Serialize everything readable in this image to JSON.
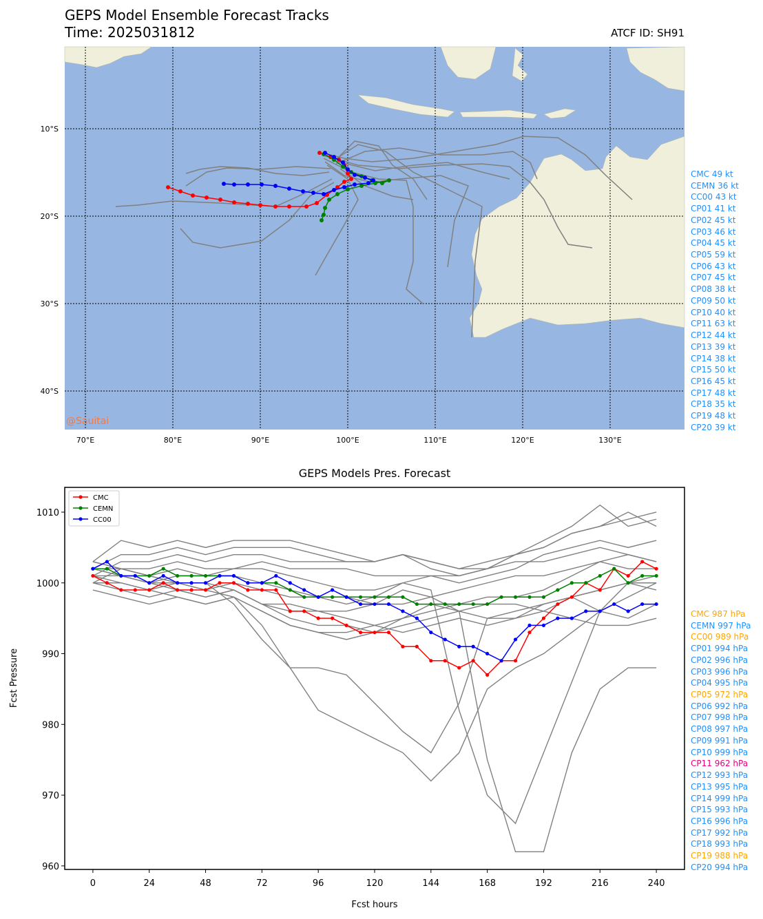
{
  "header": {
    "title": "GEPS Model Ensemble Forecast Tracks",
    "time": "Time: 2025031812",
    "atcf": "ATCF ID: SH91"
  },
  "map": {
    "watermark": "@Sauitai",
    "lat_labels": [
      "10°S",
      "20°S",
      "30°S",
      "40°S"
    ],
    "lon_labels": [
      "70°E",
      "80°E",
      "90°E",
      "100°E",
      "110°E",
      "120°E",
      "130°E"
    ],
    "colors": {
      "ocean": "#97b6e1",
      "land": "#efefdb",
      "member": "#808080",
      "cmc": "#ff0000",
      "cemn": "#008000",
      "cc00": "#0000ff"
    }
  },
  "intensity_list": [
    {
      "label": "CMC 49 kt",
      "color": "#1e90ff"
    },
    {
      "label": "CEMN 36 kt",
      "color": "#1e90ff"
    },
    {
      "label": "CC00 43 kt",
      "color": "#1e90ff"
    },
    {
      "label": "CP01 41 kt",
      "color": "#1e90ff"
    },
    {
      "label": "CP02 45 kt",
      "color": "#1e90ff"
    },
    {
      "label": "CP03 46 kt",
      "color": "#1e90ff"
    },
    {
      "label": "CP04 45 kt",
      "color": "#1e90ff"
    },
    {
      "label": "CP05 59 kt",
      "color": "#1e90ff"
    },
    {
      "label": "CP06 43 kt",
      "color": "#1e90ff"
    },
    {
      "label": "CP07 45 kt",
      "color": "#1e90ff"
    },
    {
      "label": "CP08 38 kt",
      "color": "#1e90ff"
    },
    {
      "label": "CP09 50 kt",
      "color": "#1e90ff"
    },
    {
      "label": "CP10 40 kt",
      "color": "#1e90ff"
    },
    {
      "label": "CP11 63 kt",
      "color": "#1e90ff"
    },
    {
      "label": "CP12 44 kt",
      "color": "#1e90ff"
    },
    {
      "label": "CP13 39 kt",
      "color": "#1e90ff"
    },
    {
      "label": "CP14 38 kt",
      "color": "#1e90ff"
    },
    {
      "label": "CP15 50 kt",
      "color": "#1e90ff"
    },
    {
      "label": "CP16 45 kt",
      "color": "#1e90ff"
    },
    {
      "label": "CP17 48 kt",
      "color": "#1e90ff"
    },
    {
      "label": "CP18 35 kt",
      "color": "#1e90ff"
    },
    {
      "label": "CP19 48 kt",
      "color": "#1e90ff"
    },
    {
      "label": "CP20 39 kt",
      "color": "#1e90ff"
    }
  ],
  "pressure_list": [
    {
      "label": "CMC 987 hPa",
      "color": "#ffa500"
    },
    {
      "label": "CEMN 997 hPa",
      "color": "#1e90ff"
    },
    {
      "label": "CC00 989 hPa",
      "color": "#ffa500"
    },
    {
      "label": "CP01 994 hPa",
      "color": "#1e90ff"
    },
    {
      "label": "CP02 996 hPa",
      "color": "#1e90ff"
    },
    {
      "label": "CP03 996 hPa",
      "color": "#1e90ff"
    },
    {
      "label": "CP04 995 hPa",
      "color": "#1e90ff"
    },
    {
      "label": "CP05 972 hPa",
      "color": "#ffa500"
    },
    {
      "label": "CP06 992 hPa",
      "color": "#1e90ff"
    },
    {
      "label": "CP07 998 hPa",
      "color": "#1e90ff"
    },
    {
      "label": "CP08 997 hPa",
      "color": "#1e90ff"
    },
    {
      "label": "CP09 991 hPa",
      "color": "#1e90ff"
    },
    {
      "label": "CP10 999 hPa",
      "color": "#1e90ff"
    },
    {
      "label": "CP11 962 hPa",
      "color": "#e6007e"
    },
    {
      "label": "CP12 993 hPa",
      "color": "#1e90ff"
    },
    {
      "label": "CP13 995 hPa",
      "color": "#1e90ff"
    },
    {
      "label": "CP14 999 hPa",
      "color": "#1e90ff"
    },
    {
      "label": "CP15 993 hPa",
      "color": "#1e90ff"
    },
    {
      "label": "CP16 996 hPa",
      "color": "#1e90ff"
    },
    {
      "label": "CP17 992 hPa",
      "color": "#1e90ff"
    },
    {
      "label": "CP18 993 hPa",
      "color": "#1e90ff"
    },
    {
      "label": "CP19 988 hPa",
      "color": "#ffa500"
    },
    {
      "label": "CP20 994 hPa",
      "color": "#1e90ff"
    }
  ],
  "chart_data": {
    "type": "line",
    "title": "GEPS Models Pres. Forecast",
    "xlabel": "Fcst hours",
    "ylabel": "Fcst Pressure",
    "xlim": [
      -12,
      252
    ],
    "ylim": [
      959.5,
      1013.5
    ],
    "xticks": [
      0,
      24,
      48,
      72,
      96,
      120,
      144,
      168,
      192,
      216,
      240
    ],
    "yticks": [
      960,
      970,
      980,
      990,
      1000,
      1010
    ],
    "legend": "top-left",
    "highlight_series": [
      {
        "name": "CMC",
        "color": "#ff0000",
        "x": [
          0,
          6,
          12,
          18,
          24,
          30,
          36,
          42,
          48,
          54,
          60,
          66,
          72,
          78,
          84,
          90,
          96,
          102,
          108,
          114,
          120,
          126,
          132,
          138,
          144,
          150,
          156,
          162,
          168,
          174,
          180,
          186,
          192,
          198,
          204,
          210,
          216,
          222,
          228,
          234,
          240
        ],
        "y": [
          1001,
          1000,
          999,
          999,
          999,
          1000,
          999,
          999,
          999,
          1000,
          1000,
          999,
          999,
          999,
          996,
          996,
          995,
          995,
          994,
          993,
          993,
          993,
          991,
          991,
          989,
          989,
          988,
          989,
          987,
          989,
          989,
          993,
          995,
          997,
          998,
          1000,
          999,
          1002,
          1001,
          1003,
          1002
        ]
      },
      {
        "name": "CEMN",
        "color": "#008000",
        "x": [
          0,
          6,
          12,
          18,
          24,
          30,
          36,
          42,
          48,
          54,
          60,
          66,
          72,
          78,
          84,
          90,
          96,
          102,
          108,
          114,
          120,
          126,
          132,
          138,
          144,
          150,
          156,
          162,
          168,
          174,
          180,
          186,
          192,
          198,
          204,
          210,
          216,
          222,
          228,
          234,
          240
        ],
        "y": [
          1002,
          1002,
          1001,
          1001,
          1001,
          1002,
          1001,
          1001,
          1001,
          1001,
          1001,
          1000,
          1000,
          1000,
          999,
          998,
          998,
          998,
          998,
          998,
          998,
          998,
          998,
          997,
          997,
          997,
          997,
          997,
          997,
          998,
          998,
          998,
          998,
          999,
          1000,
          1000,
          1001,
          1002,
          1000,
          1001,
          1001
        ]
      },
      {
        "name": "CC00",
        "color": "#0000ff",
        "x": [
          0,
          6,
          12,
          18,
          24,
          30,
          36,
          42,
          48,
          54,
          60,
          66,
          72,
          78,
          84,
          90,
          96,
          102,
          108,
          114,
          120,
          126,
          132,
          138,
          144,
          150,
          156,
          162,
          168,
          174,
          180,
          186,
          192,
          198,
          204,
          210,
          216,
          222,
          228,
          234,
          240
        ],
        "y": [
          1002,
          1003,
          1001,
          1001,
          1000,
          1001,
          1000,
          1000,
          1000,
          1001,
          1001,
          1000,
          1000,
          1001,
          1000,
          999,
          998,
          999,
          998,
          997,
          997,
          997,
          996,
          995,
          993,
          992,
          991,
          991,
          990,
          989,
          992,
          994,
          994,
          995,
          995,
          996,
          996,
          997,
          996,
          997,
          997
        ]
      }
    ],
    "member_series": [
      {
        "name": "member-a",
        "x": [
          0,
          12,
          24,
          36,
          48,
          60,
          72,
          84,
          96,
          108,
          120,
          132,
          144,
          156,
          168,
          180,
          192,
          204,
          216,
          228,
          240
        ],
        "y": [
          1003,
          1006,
          1005,
          1006,
          1005,
          1006,
          1006,
          1006,
          1005,
          1004,
          1003,
          1004,
          1003,
          1002,
          1003,
          1004,
          1005,
          1007,
          1008,
          1009,
          1010
        ]
      },
      {
        "name": "member-b",
        "x": [
          0,
          12,
          24,
          36,
          48,
          60,
          72,
          84,
          96,
          108,
          120,
          132,
          144,
          156,
          168,
          180,
          192,
          204,
          216,
          228,
          240
        ],
        "y": [
          1002,
          1004,
          1004,
          1005,
          1004,
          1005,
          1005,
          1005,
          1004,
          1003,
          1003,
          1004,
          1003,
          1002,
          1002,
          1004,
          1006,
          1008,
          1011,
          1008,
          1009
        ]
      },
      {
        "name": "member-c",
        "x": [
          0,
          12,
          24,
          36,
          48,
          60,
          72,
          84,
          96,
          108,
          120,
          132,
          144,
          156,
          168,
          180,
          192,
          204,
          216,
          228,
          240
        ],
        "y": [
          1001,
          1003,
          1003,
          1004,
          1003,
          1004,
          1004,
          1003,
          1003,
          1003,
          1003,
          1004,
          1002,
          1001,
          1002,
          1004,
          1005,
          1007,
          1008,
          1010,
          1008
        ]
      },
      {
        "name": "member-d",
        "x": [
          0,
          12,
          24,
          36,
          48,
          60,
          72,
          84,
          96,
          108,
          120,
          132,
          144,
          156,
          168,
          180,
          192,
          204,
          216,
          228,
          240
        ],
        "y": [
          1000,
          1002,
          1002,
          1003,
          1002,
          1002,
          1003,
          1002,
          1002,
          1002,
          1001,
          1001,
          1001,
          1000,
          1001,
          1002,
          1004,
          1005,
          1006,
          1005,
          1006
        ]
      },
      {
        "name": "member-e",
        "x": [
          0,
          12,
          24,
          36,
          48,
          60,
          72,
          84,
          96,
          108,
          120,
          132,
          144,
          156,
          168,
          180,
          192,
          204,
          216,
          228,
          240
        ],
        "y": [
          999,
          998,
          997,
          998,
          997,
          998,
          996,
          994,
          993,
          993,
          994,
          995,
          996,
          997,
          998,
          998,
          999,
          1001,
          1003,
          1004,
          1003
        ]
      },
      {
        "name": "member-f",
        "x": [
          0,
          12,
          24,
          36,
          48,
          60,
          72,
          84,
          96,
          108,
          120,
          132,
          144,
          156,
          168,
          180,
          192,
          204,
          216,
          228,
          240
        ],
        "y": [
          1000,
          999,
          998,
          999,
          998,
          999,
          997,
          995,
          994,
          994,
          993,
          994,
          995,
          996,
          997,
          997,
          996,
          998,
          999,
          1000,
          999
        ]
      },
      {
        "name": "member-g",
        "x": [
          0,
          12,
          24,
          36,
          48,
          60,
          72,
          84,
          96,
          108,
          120,
          132,
          144,
          156,
          168,
          180,
          192,
          204,
          216,
          228,
          240
        ],
        "y": [
          1001,
          1000,
          999,
          998,
          997,
          998,
          996,
          994,
          993,
          992,
          993,
          995,
          997,
          996,
          995,
          996,
          997,
          998,
          996,
          995,
          997
        ]
      },
      {
        "name": "member-h",
        "x": [
          0,
          12,
          24,
          36,
          48,
          60,
          72,
          84,
          96,
          108,
          120,
          132,
          144,
          156,
          168,
          180,
          192,
          204,
          216,
          228,
          240
        ],
        "y": [
          1002,
          1001,
          1000,
          999,
          998,
          999,
          997,
          996,
          996,
          995,
          994,
          993,
          994,
          995,
          994,
          995,
          996,
          995,
          994,
          994,
          995
        ]
      },
      {
        "name": "member-i",
        "x": [
          0,
          12,
          24,
          36,
          48,
          60,
          72,
          84,
          96,
          108,
          120,
          132,
          144,
          156,
          168,
          180,
          192,
          204,
          216,
          228,
          240
        ],
        "y": [
          1003,
          1002,
          1001,
          1000,
          999,
          998,
          994,
          988,
          988,
          987,
          983,
          979,
          976,
          983,
          995,
          995,
          997,
          998,
          999,
          1000,
          1001
        ]
      },
      {
        "name": "member-j",
        "x": [
          0,
          12,
          24,
          36,
          48,
          60,
          72,
          84,
          96,
          108,
          120,
          132,
          144,
          156,
          168,
          180,
          192,
          204,
          216,
          228,
          240
        ],
        "y": [
          1002,
          1001,
          1000,
          1000,
          1000,
          997,
          992,
          988,
          982,
          980,
          978,
          976,
          972,
          976,
          985,
          988,
          990,
          993,
          996,
          998,
          1000
        ]
      },
      {
        "name": "member-k",
        "x": [
          0,
          12,
          24,
          36,
          48,
          60,
          72,
          84,
          96,
          108,
          120,
          132,
          144,
          156,
          168,
          180,
          192,
          204,
          216,
          228,
          240
        ],
        "y": [
          1003,
          1002,
          1001,
          1000,
          1000,
          999,
          997,
          997,
          996,
          996,
          997,
          999,
          998,
          996,
          975,
          962,
          962,
          976,
          985,
          988,
          988
        ]
      },
      {
        "name": "member-l",
        "x": [
          0,
          12,
          24,
          36,
          48,
          60,
          72,
          84,
          96,
          108,
          120,
          132,
          144,
          156,
          168,
          180,
          192,
          204,
          216,
          228,
          240
        ],
        "y": [
          1001,
          1001,
          1000,
          1001,
          1001,
          1001,
          1000,
          999,
          998,
          997,
          998,
          1000,
          999,
          982,
          970,
          966,
          976,
          986,
          996,
          1000,
          1000
        ]
      },
      {
        "name": "member-m",
        "x": [
          0,
          12,
          24,
          36,
          48,
          60,
          72,
          84,
          96,
          108,
          120,
          132,
          144,
          156,
          168,
          180,
          192,
          204,
          216,
          228,
          240
        ],
        "y": [
          1002,
          1002,
          1001,
          1002,
          1001,
          1002,
          1002,
          1001,
          1000,
          999,
          999,
          1000,
          1001,
          1001,
          1002,
          1003,
          1003,
          1004,
          1005,
          1004,
          1003
        ]
      },
      {
        "name": "member-n",
        "x": [
          0,
          12,
          24,
          36,
          48,
          60,
          72,
          84,
          96,
          108,
          120,
          132,
          144,
          156,
          168,
          180,
          192,
          204,
          216,
          228,
          240
        ],
        "y": [
          1000,
          1000,
          999,
          1000,
          999,
          1000,
          999,
          998,
          998,
          998,
          997,
          997,
          998,
          999,
          1000,
          1001,
          1001,
          1002,
          1003,
          1002,
          1002
        ]
      }
    ]
  }
}
